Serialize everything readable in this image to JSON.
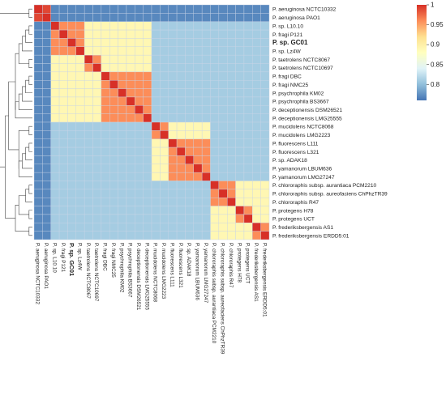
{
  "chart_data": {
    "type": "heatmap",
    "title": "",
    "row_labels": [
      "P. aeruginosa NCTC10332",
      "P. aeruginosa PAO1",
      "P. sp. L10.10",
      "P. fragi P121",
      "P. sp. GC01",
      "P. sp. Lz4W",
      "P. taetrolens NCTC8067",
      "P. taetrolens NCTC10697",
      "P. fragi DBC",
      "P. fragi NMC25",
      "P. psychrophila KM02",
      "P. psychrophila BS3667",
      "P. deceptionensis DSM26521",
      "P. deceptionensis LMG25555",
      "P. mucidolens NCTC8068",
      "P. mucidolens LMG2223",
      "P. fluorescens L111",
      "P. fluorescens L321",
      "P. sp. ADAK18",
      "P. yamanorum LBUM636",
      "P. yamanorum LMG27247",
      "P. chlororaphis subsp. aurantiaca PCM2210",
      "P. chlororaphis subsp. aureofaciens ChPhzTR39",
      "P. chlororaphis R47",
      "P. protegens H78",
      "P. protegens UCT",
      "P. frederiksbergensis AS1",
      "P. frederiksbergensis ERDD5:01"
    ],
    "col_labels": [
      "P. aeruginosa NCTC10332",
      "P. aeruginosa PAO1",
      "P. sp. L10.10",
      "P. fragi P121",
      "P. sp. GC01",
      "P. sp. Lz4W",
      "P. taetrolens NCTC8067",
      "P. taetrolens NCTC10697",
      "P. fragi DBC",
      "P. fragi NMC25",
      "P. psychrophila KM02",
      "P. psychrophila BS3667",
      "P. deceptionensis DSM26521",
      "P. deceptionensis LMG25555",
      "P. mucidolens NCTC8068",
      "P. mucidolens LMG2223",
      "P. fluorescens L111",
      "P. fluorescens L321",
      "P. sp. ADAK18",
      "P. yamanorum LBUM636",
      "P. yamanorum LMG27247",
      "P. chlororaphis subsp. aurantiaca PCM2210",
      "P. chlororaphis subsp. aureofaciens ChPhzTR39",
      "P. chlororaphis R47",
      "P. protegens H78",
      "P. protegens UCT",
      "P. frederiksbergensis AS1",
      "P. frederiksbergensis ERDD5:01"
    ],
    "bold_label": "P. sp. GC01",
    "groups": [
      [
        0,
        1
      ],
      [
        2,
        3,
        4,
        5
      ],
      [
        6,
        7
      ],
      [
        8,
        9,
        10,
        11,
        12,
        13
      ],
      [
        14,
        15
      ],
      [
        16,
        17,
        18,
        19,
        20
      ],
      [
        21,
        22,
        23
      ],
      [
        24,
        25
      ],
      [
        26,
        27
      ]
    ],
    "supergroups": [
      [
        0,
        1
      ],
      [
        2,
        13
      ],
      [
        14,
        20
      ],
      [
        21,
        27
      ]
    ],
    "value_levels": {
      "self": 1.0,
      "aeruginosa_pair": 0.99,
      "within_group": 0.96,
      "within_supergroup": 0.89,
      "aeruginosa_vs_other": 0.77,
      "between_supergroups": 0.81
    },
    "colorbar": {
      "ticks": [
        1,
        0.95,
        0.9,
        0.85,
        0.8
      ],
      "range": [
        0.76,
        1.0
      ],
      "colors": [
        "#4575b4",
        "#91bfdb",
        "#e0f3f8",
        "#ffffbf",
        "#fee090",
        "#fc8d59",
        "#d73027"
      ]
    },
    "has_dendrogram": true,
    "grid_color": "#c8d4e6"
  }
}
